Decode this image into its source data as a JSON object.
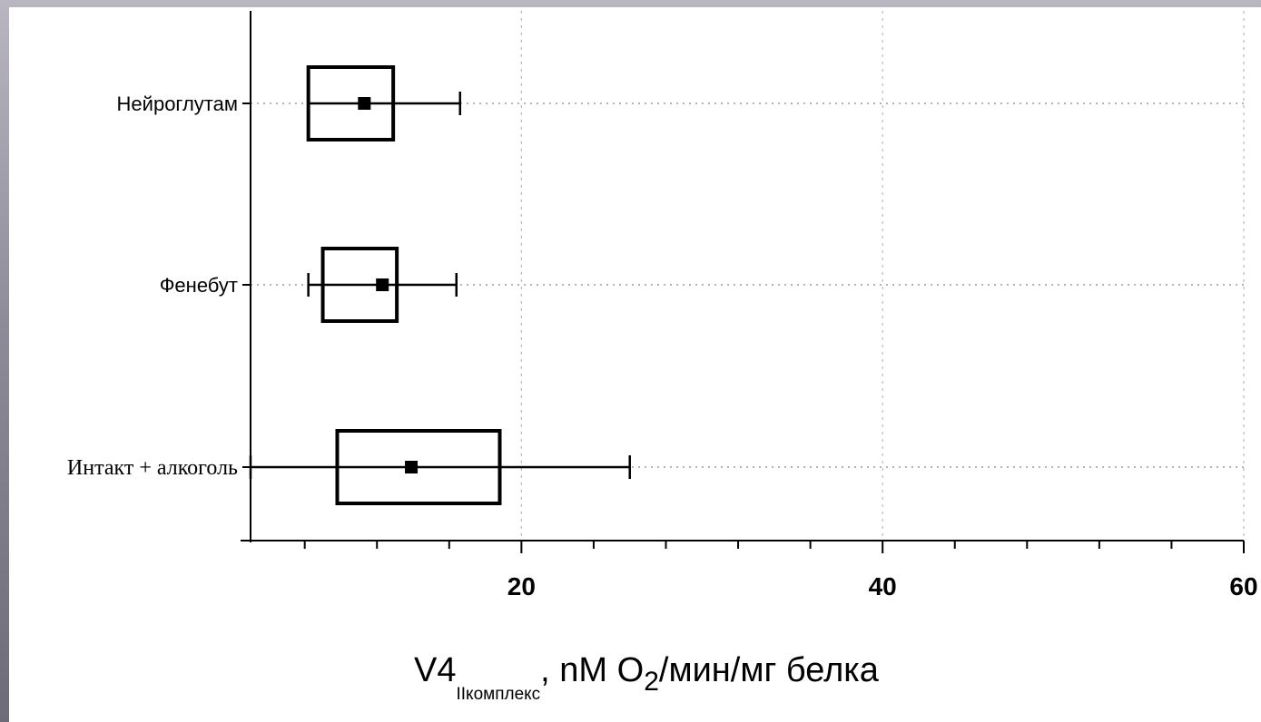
{
  "chart_data": {
    "type": "box",
    "orientation": "horizontal",
    "categories": [
      "Нейроглутам",
      "Фенебут",
      "Интакт + алкоголь"
    ],
    "boxes": [
      {
        "category": "Нейроглутам",
        "center": 11.3,
        "box_low": 8.2,
        "box_high": 12.9,
        "whisker_low": 8.2,
        "whisker_high": 16.6
      },
      {
        "category": "Фенебут",
        "center": 12.3,
        "box_low": 9.0,
        "box_high": 13.1,
        "whisker_low": 8.2,
        "whisker_high": 16.4
      },
      {
        "category": "Интакт + алкоголь",
        "center": 13.9,
        "box_low": 9.8,
        "box_high": 18.8,
        "whisker_low": 5.0,
        "whisker_high": 26.0
      }
    ],
    "xlim": [
      5.0,
      60
    ],
    "xticks": [
      20,
      40,
      60
    ],
    "xtick_labels": [
      "20",
      "40",
      "60"
    ],
    "minor_tick_step": 4,
    "grid": true,
    "xlabel": {
      "main": "V4",
      "subscript": "IIкомплекс",
      "rest_a": ", nM O",
      "subscript2": "2",
      "rest_b": "/мин/мг белка"
    }
  }
}
